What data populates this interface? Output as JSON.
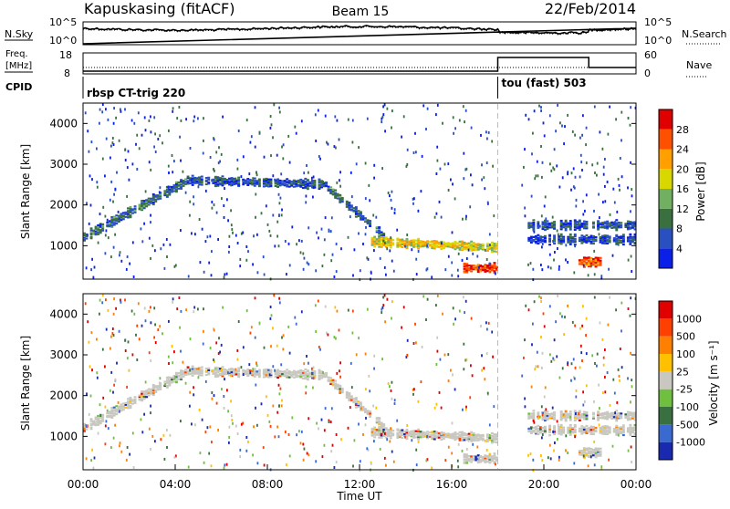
{
  "header": {
    "station": "Kapuskasing (fitACF)",
    "beam": "Beam 15",
    "date": "22/Feb/2014"
  },
  "noise_panel": {
    "left_label": "N.Sky",
    "left_ticks": [
      "10^5",
      "10^0"
    ],
    "right_label": "N.Search",
    "right_ticks": [
      "10^5",
      "10^0"
    ]
  },
  "freq_panel": {
    "left_label_line1": "Freq.",
    "left_label_line2": "[MHz]",
    "left_ticks": [
      "18",
      "8"
    ],
    "right_label": "Nave",
    "right_ticks": [
      "60",
      "0"
    ]
  },
  "cpid_panel": {
    "label": "CPID",
    "programs": [
      {
        "name": "rbsp CT-trig 220",
        "start_hour": 0,
        "end_hour": 18
      },
      {
        "name": "tou (fast) 503",
        "start_hour": 18,
        "end_hour": 24
      }
    ]
  },
  "power_panel": {
    "ylabel": "Slant Range [km]",
    "yticks": [
      "4000",
      "3000",
      "2000",
      "1000"
    ],
    "colorbar_label": "Power [dB]",
    "colorbar_ticks": [
      "28",
      "24",
      "20",
      "16",
      "12",
      "8",
      "4"
    ],
    "colors": [
      "#0a1fe8",
      "#2a4fc0",
      "#3a7040",
      "#70b060",
      "#d8d800",
      "#ffa000",
      "#ff5000",
      "#e00000"
    ]
  },
  "velocity_panel": {
    "ylabel": "Slant Range [km]",
    "yticks": [
      "4000",
      "3000",
      "2000",
      "1000"
    ],
    "colorbar_label": "Velocity [m s⁻¹]",
    "colorbar_ticks": [
      "1000",
      "500",
      "100",
      "25",
      "-25",
      "-100",
      "-500",
      "-1000"
    ],
    "colors": [
      "#1a2ab0",
      "#3a6ad0",
      "#3a7040",
      "#70c040",
      "#c8c8c0",
      "#ffc000",
      "#ff8000",
      "#ff4000",
      "#e00000"
    ]
  },
  "x_axis": {
    "label": "Time UT",
    "ticks": [
      "00:00",
      "04:00",
      "08:00",
      "12:00",
      "16:00",
      "20:00",
      "00:00"
    ]
  },
  "chart_data": {
    "type": "heatmap",
    "x_range_hours": [
      0,
      24
    ],
    "y_range_km": [
      180,
      4500
    ],
    "program_change_hour": 18,
    "echo_bands": [
      {
        "name": "ground-scatter-rising",
        "start_hour": 0,
        "end_hour": 4.5,
        "start_km": 1250,
        "end_km": 2650,
        "power_db": 8,
        "velocity_class": 25
      },
      {
        "name": "ground-scatter-plateau",
        "start_hour": 4.5,
        "end_hour": 10.5,
        "start_km": 2650,
        "end_km": 2550,
        "power_db": 6,
        "velocity_class": 25
      },
      {
        "name": "ground-scatter-descending",
        "start_hour": 10.5,
        "end_hour": 13,
        "start_km": 2500,
        "end_km": 1300,
        "power_db": 8,
        "velocity_class": 25
      },
      {
        "name": "ground-scatter-evening",
        "start_hour": 12.5,
        "end_hour": 18,
        "start_km": 1150,
        "end_km": 1000,
        "power_db": 18,
        "velocity_class": 25
      },
      {
        "name": "near-range-strong",
        "start_hour": 16.5,
        "end_hour": 18,
        "start_km": 500,
        "end_km": 500,
        "power_db": 28,
        "velocity_class": 25
      },
      {
        "name": "late-band-upper",
        "start_hour": 19.3,
        "end_hour": 24,
        "start_km": 1550,
        "end_km": 1550,
        "power_db": 6,
        "velocity_class": 25
      },
      {
        "name": "late-band-lower",
        "start_hour": 19.3,
        "end_hour": 24,
        "start_km": 1200,
        "end_km": 1200,
        "power_db": 6,
        "velocity_class": 25
      },
      {
        "name": "late-near-range",
        "start_hour": 21.5,
        "end_hour": 22.5,
        "start_km": 650,
        "end_km": 650,
        "power_db": 26,
        "velocity_class": 25
      }
    ]
  }
}
